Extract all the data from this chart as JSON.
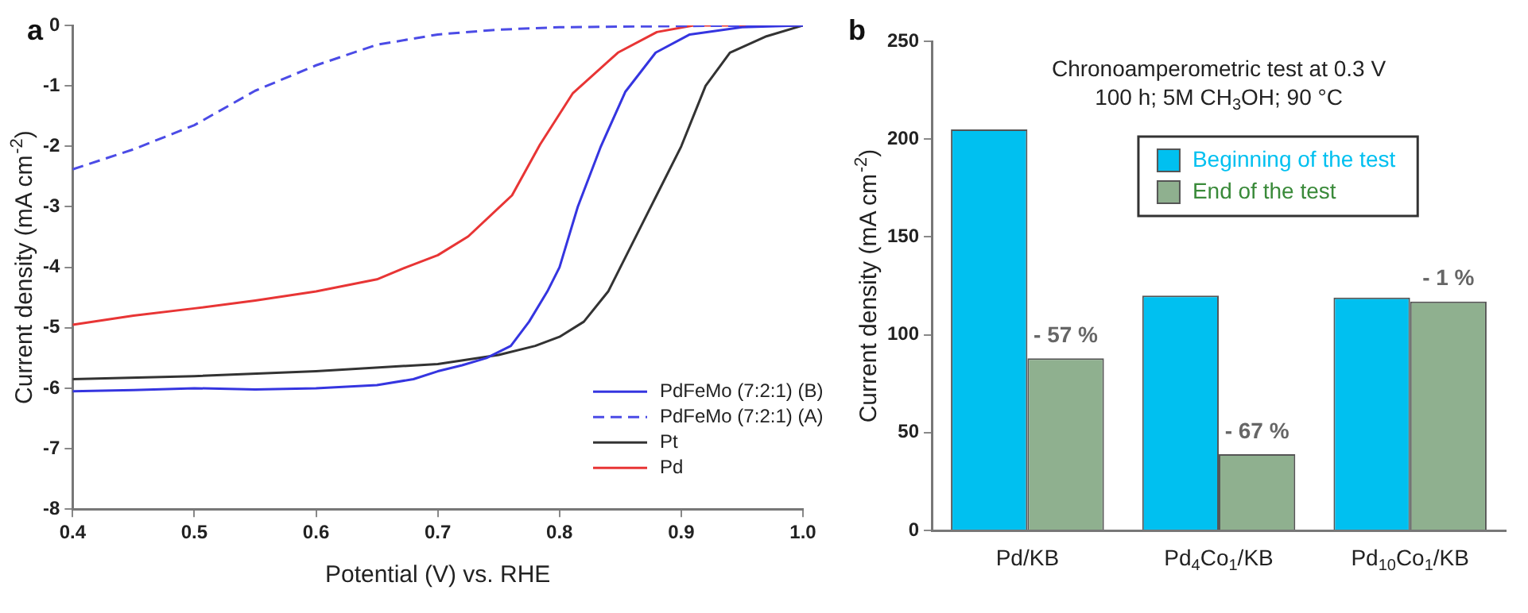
{
  "chart_data": [
    {
      "type": "line",
      "annotations": [
        "a"
      ],
      "xlabel": "Potential (V) vs. RHE",
      "ylabel": "Current density (mA cm$^{-2}$)",
      "xlim": [
        0.4,
        1.0
      ],
      "xticks": [
        0.4,
        0.5,
        0.6,
        0.7,
        0.8,
        0.9,
        {
          "value": 1.0,
          "label": "1.0"
        }
      ],
      "ylim": [
        -8,
        0
      ],
      "yticks": [
        -8,
        -7,
        -6,
        -5,
        -4,
        -3,
        -2,
        -1,
        0
      ],
      "grid": false,
      "legend": "bottom right",
      "marker": "none",
      "series": [
        {
          "name": "PdFeMo (7:2:1) (B)",
          "color": "#3535e0",
          "line_style": "solid",
          "x": [
            0.4,
            0.45,
            0.5,
            0.55,
            0.6,
            0.65,
            0.68,
            0.7,
            0.72,
            0.74,
            0.76,
            0.775,
            0.79,
            0.8,
            0.815,
            0.834,
            0.854,
            0.879,
            0.907,
            0.95,
            1.0
          ],
          "values": [
            -6.05,
            -6.03,
            -6.0,
            -6.02,
            -6.0,
            -5.95,
            -5.85,
            -5.72,
            -5.62,
            -5.5,
            -5.3,
            -4.9,
            -4.4,
            -4.0,
            -3.0,
            -2.0,
            -1.1,
            -0.45,
            -0.15,
            -0.03,
            0
          ]
        },
        {
          "name": "PdFeMo (7:2:1) (A)",
          "color": "#4b4be6",
          "line_style": "dashed",
          "x": [
            0.4,
            0.45,
            0.5,
            0.55,
            0.6,
            0.65,
            0.7,
            0.75,
            0.8,
            0.9,
            1.0
          ],
          "values": [
            -2.38,
            -2.05,
            -1.65,
            -1.08,
            -0.66,
            -0.32,
            -0.15,
            -0.07,
            -0.03,
            -0.01,
            0
          ]
        },
        {
          "name": "Pt",
          "color": "#333333",
          "line_style": "solid",
          "x": [
            0.4,
            0.5,
            0.6,
            0.7,
            0.75,
            0.78,
            0.8,
            0.82,
            0.84,
            0.86,
            0.88,
            0.9,
            0.92,
            0.94,
            0.97,
            1.0
          ],
          "values": [
            -5.85,
            -5.8,
            -5.72,
            -5.6,
            -5.45,
            -5.3,
            -5.15,
            -4.9,
            -4.4,
            -3.6,
            -2.8,
            -2.0,
            -1.0,
            -0.45,
            -0.18,
            0
          ]
        },
        {
          "name": "Pd",
          "color": "#e83535",
          "line_style": "solid",
          "x": [
            0.4,
            0.45,
            0.5,
            0.55,
            0.6,
            0.65,
            0.674,
            0.7,
            0.725,
            0.761,
            0.784,
            0.811,
            0.848,
            0.88,
            0.91,
            1.0
          ],
          "values": [
            -4.95,
            -4.8,
            -4.68,
            -4.55,
            -4.4,
            -4.2,
            -4.0,
            -3.8,
            -3.49,
            -2.81,
            -1.97,
            -1.12,
            -0.45,
            -0.11,
            0,
            0
          ]
        }
      ]
    },
    {
      "type": "bar",
      "title": "Chronoamperometric test at 0.3 V",
      "subtitle": "100 h; 5M CH$_{3}$OH; 90 °C",
      "annotations": [
        "b",
        {
          "text": "- 57 %",
          "x": "Pd/KB",
          "y": 88
        },
        {
          "text": "- 67 %",
          "x": "Pd$_{4}$Co$_{1}$/KB",
          "y": 39
        },
        {
          "text": "- 1 %",
          "x": "Pd$_{10}$Co$_{1}$/KB",
          "y": 117
        }
      ],
      "ylabel": "Current density (mA cm$^{-2}$)",
      "categories": [
        "Pd/KB",
        "Pd$_{4}$Co$_{1}$/KB",
        "Pd$_{10}$Co$_{1}$/KB"
      ],
      "ylim": [
        0,
        250
      ],
      "yticks": [
        0,
        50,
        100,
        150,
        200,
        250
      ],
      "grid": false,
      "legend": "top",
      "series": [
        {
          "name": "Beginning of the test",
          "color": "#00c0f0",
          "values": [
            205,
            120,
            119
          ]
        },
        {
          "name": "End of the test",
          "color": "#8fb08f",
          "values": [
            88,
            39,
            117
          ]
        }
      ]
    }
  ]
}
